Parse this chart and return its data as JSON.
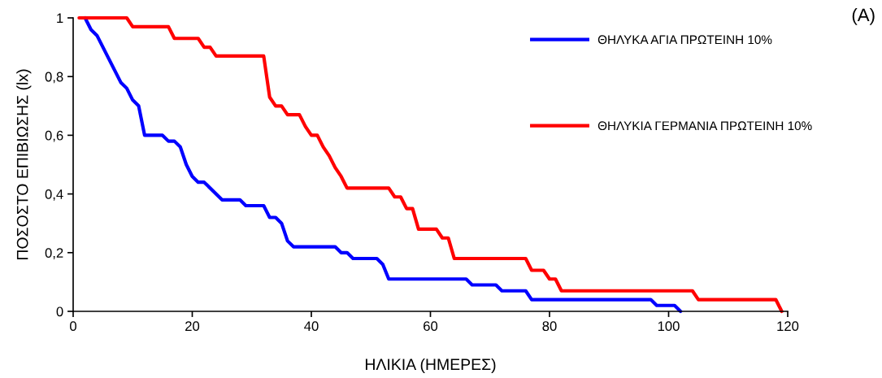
{
  "chart_data": {
    "type": "line",
    "xlabel": "ΗΛΙΚΙΑ (ΗΜΕΡΕΣ)",
    "ylabel": "ΠΟΣΟΣΤΟ ΕΠΙΒΙΩΣΗΣ (lx)",
    "annotations": [
      "(A)"
    ],
    "xlim": [
      0,
      120
    ],
    "xticks": [
      0,
      20,
      40,
      60,
      80,
      100,
      120
    ],
    "ylim": [
      0,
      1
    ],
    "yticks": [
      0,
      {
        "value": 0.2,
        "label": "0,2"
      },
      {
        "value": 0.4,
        "label": "0,4"
      },
      {
        "value": 0.6,
        "label": "0,6"
      },
      {
        "value": 0.8,
        "label": "0,8"
      },
      1
    ],
    "grid": false,
    "legend": "top right",
    "marker": "none",
    "line_style": "solid",
    "series": [
      {
        "name": "ΘΗΛΥΚΑ ΑΓΙΑ ΠΡΩΤΕΙΝΗ 10%",
        "color": "#0000ff",
        "x": [
          2,
          3,
          4,
          8,
          9,
          10,
          11,
          12,
          15,
          16,
          17,
          18,
          19,
          20,
          21,
          22,
          25,
          28,
          29,
          32,
          33,
          34,
          35,
          36,
          37,
          44,
          45,
          46,
          47,
          51,
          52,
          53,
          66,
          67,
          71,
          72,
          76,
          77,
          97,
          98,
          101,
          102
        ],
        "values": [
          1,
          0.96,
          0.94,
          0.78,
          0.76,
          0.72,
          0.7,
          0.6,
          0.6,
          0.58,
          0.58,
          0.56,
          0.5,
          0.46,
          0.44,
          0.44,
          0.38,
          0.38,
          0.36,
          0.36,
          0.32,
          0.32,
          0.3,
          0.24,
          0.22,
          0.22,
          0.2,
          0.2,
          0.18,
          0.18,
          0.16,
          0.11,
          0.11,
          0.09,
          0.09,
          0.07,
          0.07,
          0.04,
          0.04,
          0.02,
          0.02,
          0
        ]
      },
      {
        "name": "ΘΗΛΥΚΙΑ ΓΕΡΜΑΝΙΑ ΠΡΩΤΕΙΝΗ 10%",
        "color": "#ff0000",
        "x": [
          1,
          9,
          10,
          16,
          17,
          21,
          22,
          23,
          24,
          32,
          33,
          34,
          35,
          36,
          38,
          39,
          40,
          41,
          42,
          43,
          44,
          45,
          46,
          53,
          54,
          55,
          56,
          57,
          58,
          61,
          62,
          63,
          64,
          76,
          77,
          79,
          80,
          81,
          82,
          104,
          105,
          118,
          119
        ],
        "values": [
          1,
          1,
          0.97,
          0.97,
          0.93,
          0.93,
          0.9,
          0.9,
          0.87,
          0.87,
          0.73,
          0.7,
          0.7,
          0.67,
          0.67,
          0.63,
          0.6,
          0.6,
          0.56,
          0.53,
          0.49,
          0.46,
          0.42,
          0.42,
          0.39,
          0.39,
          0.35,
          0.35,
          0.28,
          0.28,
          0.25,
          0.25,
          0.18,
          0.18,
          0.14,
          0.14,
          0.11,
          0.11,
          0.07,
          0.07,
          0.04,
          0.04,
          0
        ]
      }
    ]
  }
}
